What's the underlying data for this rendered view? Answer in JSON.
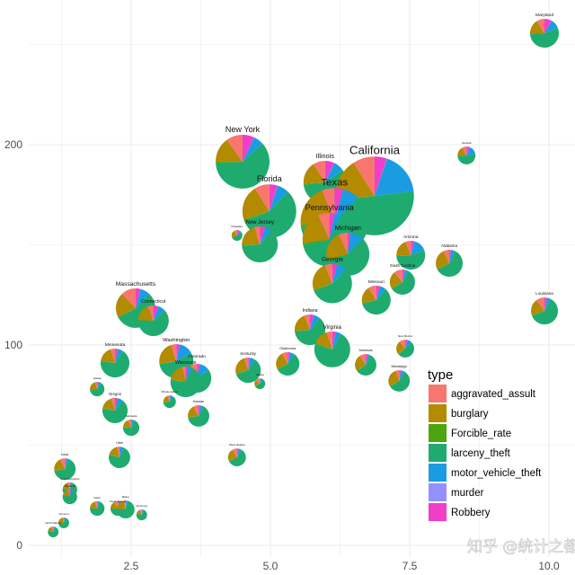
{
  "chart_data": {
    "type": "scatter-pie",
    "title": "",
    "xlabel": "",
    "ylabel": "",
    "xlim": [
      0.8,
      10.2
    ],
    "ylim": [
      -3,
      272
    ],
    "x_ticks": [
      "2.5",
      "5.0",
      "7.5",
      "10.0"
    ],
    "x_tick_values": [
      2.5,
      5.0,
      7.5,
      10.0
    ],
    "y_ticks": [
      "0",
      "100",
      "200"
    ],
    "y_tick_values": [
      0,
      100,
      200
    ],
    "grid": true,
    "legend": {
      "title": "type",
      "placement": "bottom-right",
      "entries": [
        "aggravated_assult",
        "burglary",
        "Forcible_rate",
        "larceny_theft",
        "motor_vehicle_theft",
        "murder",
        "Robbery"
      ],
      "colors": [
        "#F8766D",
        "#B38A00",
        "#4CA50F",
        "#1FAB6F",
        "#1B9CE2",
        "#9590FF",
        "#F03EC8"
      ]
    },
    "slice_order": [
      "aggravated_assult",
      "burglary",
      "Forcible_rate",
      "larceny_theft",
      "motor_vehicle_theft",
      "murder",
      "Robbery"
    ],
    "points": [
      {
        "name": "Maryland",
        "x": 9.92,
        "y": 255.6,
        "size": 4.7,
        "slices": [
          9,
          16,
          1,
          55,
          11,
          0.2,
          8
        ]
      },
      {
        "name": "Nevada",
        "x": 8.52,
        "y": 194.6,
        "size": 1.8,
        "slices": [
          8,
          17,
          1,
          52,
          16,
          0.2,
          6
        ]
      },
      {
        "name": "New York",
        "x": 4.5,
        "y": 191.5,
        "size": 16.4,
        "slices": [
          10,
          15,
          1,
          61,
          6,
          0.1,
          7
        ]
      },
      {
        "name": "Illinois",
        "x": 5.98,
        "y": 181.2,
        "size": 10.5,
        "slices": [
          9,
          17,
          1,
          58,
          8,
          0.2,
          7
        ]
      },
      {
        "name": "California",
        "x": 6.87,
        "y": 174.4,
        "size": 35,
        "slices": [
          9,
          17,
          1,
          50,
          18,
          0.1,
          5
        ]
      },
      {
        "name": "Florida",
        "x": 4.98,
        "y": 166.8,
        "size": 16.4,
        "slices": [
          9,
          21,
          1,
          57,
          7,
          0.1,
          5
        ]
      },
      {
        "name": "Texas",
        "x": 6.15,
        "y": 161.4,
        "size": 26,
        "slices": [
          6,
          20,
          1,
          60,
          8,
          0.1,
          4
        ]
      },
      {
        "name": "Pennsylvania",
        "x": 6.06,
        "y": 152.5,
        "size": 16.4,
        "slices": [
          7,
          20,
          1,
          65,
          4,
          0.1,
          3
        ]
      },
      {
        "name": "New Jersey",
        "x": 4.81,
        "y": 150.2,
        "size": 7.3,
        "slices": [
          5,
          20,
          1,
          62,
          6,
          0.1,
          5
        ]
      },
      {
        "name": "Delaware",
        "x": 4.4,
        "y": 154.7,
        "size": 0.66,
        "slices": [
          10,
          20,
          1,
          55,
          6,
          0.2,
          8
        ]
      },
      {
        "name": "Michigan",
        "x": 6.39,
        "y": 145.3,
        "size": 10.5,
        "slices": [
          7,
          22,
          1,
          58,
          10,
          0.2,
          2
        ]
      },
      {
        "name": "Arizona",
        "x": 7.52,
        "y": 144.8,
        "size": 4.7,
        "slices": [
          6,
          19,
          1,
          55,
          15,
          0.1,
          4
        ]
      },
      {
        "name": "South Carolina",
        "x": 7.37,
        "y": 131.4,
        "size": 3.6,
        "slices": [
          11,
          22,
          1,
          58,
          5,
          0.2,
          3
        ]
      },
      {
        "name": "Alabama",
        "x": 8.21,
        "y": 140.8,
        "size": 4.1,
        "slices": [
          7,
          25,
          1,
          60,
          5,
          0.2,
          2
        ]
      },
      {
        "name": "Georgia",
        "x": 6.11,
        "y": 130.7,
        "size": 8.8,
        "slices": [
          6,
          24,
          1,
          57,
          8,
          0.1,
          4
        ]
      },
      {
        "name": "Missouri",
        "x": 6.9,
        "y": 122.4,
        "size": 4.7,
        "slices": [
          9,
          19,
          1,
          60,
          7,
          0.2,
          4
        ]
      },
      {
        "name": "Louisiana",
        "x": 9.92,
        "y": 117,
        "size": 4.1,
        "slices": [
          10,
          20,
          1,
          62,
          4,
          0.2,
          3
        ]
      },
      {
        "name": "Massachusetts",
        "x": 2.58,
        "y": 118.4,
        "size": 8.8,
        "slices": [
          12,
          20,
          1,
          55,
          8,
          0.1,
          4
        ]
      },
      {
        "name": "Connecticut",
        "x": 2.9,
        "y": 112.1,
        "size": 5.3,
        "slices": [
          6,
          18,
          1,
          62,
          8,
          0.1,
          5
        ]
      },
      {
        "name": "Indiana",
        "x": 5.71,
        "y": 107.6,
        "size": 5.3,
        "slices": [
          6,
          20,
          1,
          62,
          7,
          0.1,
          4
        ]
      },
      {
        "name": "Virginia",
        "x": 6.11,
        "y": 97.8,
        "size": 7.3,
        "slices": [
          5,
          14,
          1,
          72,
          5,
          0.1,
          3
        ]
      },
      {
        "name": "Oklahoma",
        "x": 5.31,
        "y": 90.6,
        "size": 3.1,
        "slices": [
          8,
          24,
          1,
          58,
          6,
          0.2,
          3
        ]
      },
      {
        "name": "Arkansas",
        "x": 6.71,
        "y": 90.1,
        "size": 2.6,
        "slices": [
          9,
          25,
          1,
          58,
          4,
          0.2,
          3
        ]
      },
      {
        "name": "New Mexico",
        "x": 7.42,
        "y": 98.2,
        "size": 1.8,
        "slices": [
          11,
          24,
          1,
          52,
          8,
          0.2,
          4
        ]
      },
      {
        "name": "Mississippi",
        "x": 7.31,
        "y": 82.1,
        "size": 2.6,
        "slices": [
          5,
          28,
          1,
          58,
          5,
          0.2,
          3
        ]
      },
      {
        "name": "Minnesota",
        "x": 2.21,
        "y": 91.0,
        "size": 4.7,
        "slices": [
          5,
          17,
          1,
          68,
          6,
          0.1,
          3
        ]
      },
      {
        "name": "Washington",
        "x": 3.31,
        "y": 91.9,
        "size": 6.6,
        "slices": [
          5,
          22,
          1,
          55,
          14,
          0.1,
          3
        ]
      },
      {
        "name": "Colorado",
        "x": 3.68,
        "y": 83.4,
        "size": 4.7,
        "slices": [
          7,
          19,
          1,
          58,
          12,
          0.1,
          3
        ]
      },
      {
        "name": "Wisconsin",
        "x": 3.48,
        "y": 81.6,
        "size": 5.3,
        "slices": [
          4,
          18,
          1,
          70,
          5,
          0.1,
          2
        ]
      },
      {
        "name": "Kentucky",
        "x": 4.6,
        "y": 87.4,
        "size": 3.6,
        "slices": [
          5,
          24,
          1,
          62,
          6,
          0.1,
          2
        ]
      },
      {
        "name": "Alaska",
        "x": 4.81,
        "y": 80.7,
        "size": 0.66,
        "slices": [
          14,
          16,
          2,
          58,
          8,
          0.2,
          2
        ]
      },
      {
        "name": "Oregon",
        "x": 2.21,
        "y": 67.3,
        "size": 3.6,
        "slices": [
          5,
          17,
          1,
          67,
          7,
          0.1,
          3
        ]
      },
      {
        "name": "Kansas",
        "x": 3.71,
        "y": 64.6,
        "size": 2.6,
        "slices": [
          8,
          19,
          1,
          64,
          5,
          0.1,
          3
        ]
      },
      {
        "name": "Utah",
        "x": 2.29,
        "y": 43.9,
        "size": 2.6,
        "slices": [
          4,
          16,
          1,
          72,
          6,
          0.1,
          1
        ]
      },
      {
        "name": "West Virginia",
        "x": 4.4,
        "y": 43.9,
        "size": 1.8,
        "slices": [
          9,
          22,
          1,
          60,
          5,
          0.2,
          3
        ]
      },
      {
        "name": "Hawaii",
        "x": 1.89,
        "y": 78.0,
        "size": 1.2,
        "slices": [
          5,
          20,
          1,
          64,
          7,
          0.1,
          3
        ]
      },
      {
        "name": "Rhode Island",
        "x": 3.19,
        "y": 71.7,
        "size": 0.9,
        "slices": [
          6,
          20,
          1,
          64,
          7,
          0.1,
          2
        ]
      },
      {
        "name": "Nebraska",
        "x": 2.5,
        "y": 58.7,
        "size": 1.5,
        "slices": [
          6,
          17,
          1,
          68,
          6,
          0.1,
          2
        ]
      },
      {
        "name": "Iowa",
        "x": 1.31,
        "y": 38.1,
        "size": 2.6,
        "slices": [
          7,
          20,
          1,
          64,
          5,
          0.1,
          2
        ]
      },
      {
        "name": "New Hampshire",
        "x": 1.4,
        "y": 27.8,
        "size": 1.2,
        "slices": [
          4,
          17,
          1,
          72,
          4,
          0.1,
          2
        ]
      },
      {
        "name": "Montana",
        "x": 1.4,
        "y": 24.2,
        "size": 1.2,
        "slices": [
          5,
          14,
          1,
          72,
          6,
          0.1,
          2
        ]
      },
      {
        "name": "Idaho",
        "x": 1.89,
        "y": 18.4,
        "size": 1.2,
        "slices": [
          6,
          18,
          1,
          68,
          5,
          0.1,
          2
        ]
      },
      {
        "name": "South Dakota",
        "x": 2.26,
        "y": 18.4,
        "size": 1.2,
        "slices": [
          8,
          16,
          1,
          68,
          5,
          0.1,
          2
        ]
      },
      {
        "name": "Maine",
        "x": 2.4,
        "y": 17.9,
        "size": 1.8,
        "slices": [
          3,
          20,
          1,
          72,
          3,
          0.1,
          1
        ]
      },
      {
        "name": "Wyoming",
        "x": 2.69,
        "y": 15.2,
        "size": 0.66,
        "slices": [
          6,
          14,
          1,
          72,
          5,
          0.1,
          2
        ]
      },
      {
        "name": "Vermont",
        "x": 1.29,
        "y": 11.2,
        "size": 0.66,
        "slices": [
          4,
          22,
          1,
          68,
          3,
          0.1,
          2
        ]
      },
      {
        "name": "North Dakota",
        "x": 1.1,
        "y": 6.7,
        "size": 0.66,
        "slices": [
          5,
          15,
          1,
          70,
          7,
          0.1,
          2
        ]
      }
    ]
  },
  "watermark": "知乎 @统计之都"
}
